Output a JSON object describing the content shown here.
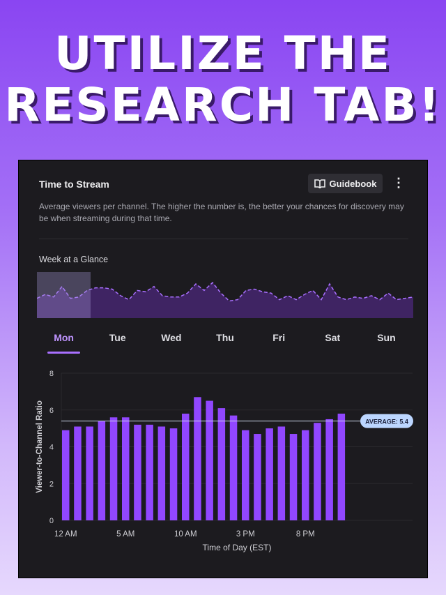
{
  "headline": [
    "UTILIZE THE",
    "RESEARCH TAB!"
  ],
  "card": {
    "title": "Time to Stream",
    "guidebook_label": "Guidebook",
    "more_icon": "vertical-ellipsis-icon",
    "description": "Average viewers per channel. The higher the number is, the better your chances for discovery may be when streaming during that time.",
    "week_label": "Week at a Glance",
    "week_glance": [
      5.0,
      5.3,
      5.1,
      5.9,
      5.0,
      5.1,
      5.6,
      5.8,
      5.8,
      5.7,
      5.2,
      4.9,
      5.6,
      5.5,
      5.9,
      5.2,
      5.1,
      5.1,
      5.4,
      6.1,
      5.6,
      6.2,
      5.4,
      4.8,
      4.9,
      5.6,
      5.7,
      5.5,
      5.4,
      4.9,
      5.2,
      4.9,
      5.3,
      5.6,
      4.9,
      6.1,
      5.1,
      4.9,
      5.1,
      5.0,
      5.2,
      4.9,
      5.4,
      4.9,
      5.0,
      5.1
    ],
    "tabs": [
      "Mon",
      "Tue",
      "Wed",
      "Thu",
      "Fri",
      "Sat",
      "Sun"
    ],
    "active_tab": "Mon"
  },
  "colors": {
    "accent": "#9147ff",
    "avg_pill": "#bcd6ff"
  },
  "chart_data": {
    "type": "bar",
    "categories": [
      "12 AM",
      "1 AM",
      "2 AM",
      "3 AM",
      "4 AM",
      "5 AM",
      "6 AM",
      "7 AM",
      "8 AM",
      "9 AM",
      "10 AM",
      "11 AM",
      "12 PM",
      "1 PM",
      "2 PM",
      "3 PM",
      "4 PM",
      "5 PM",
      "6 PM",
      "7 PM",
      "8 PM",
      "9 PM",
      "10 PM",
      "11 PM"
    ],
    "values": [
      4.9,
      5.1,
      5.1,
      5.4,
      5.6,
      5.6,
      5.2,
      5.2,
      5.1,
      5.0,
      5.8,
      6.7,
      6.5,
      6.1,
      5.7,
      4.9,
      4.7,
      5.0,
      5.1,
      4.7,
      4.9,
      5.3,
      5.5,
      5.8
    ],
    "xtick_labels": [
      "12 AM",
      "5 AM",
      "10 AM",
      "3 PM",
      "8 PM"
    ],
    "ytick_labels": [
      "0",
      "2",
      "4",
      "6",
      "8"
    ],
    "ylim": [
      0,
      8
    ],
    "xlabel": "Time of Day (EST)",
    "ylabel": "Viewer-to-Channel Ratio",
    "average": 5.4,
    "average_label": "AVERAGE: 5.4",
    "grid": true
  }
}
